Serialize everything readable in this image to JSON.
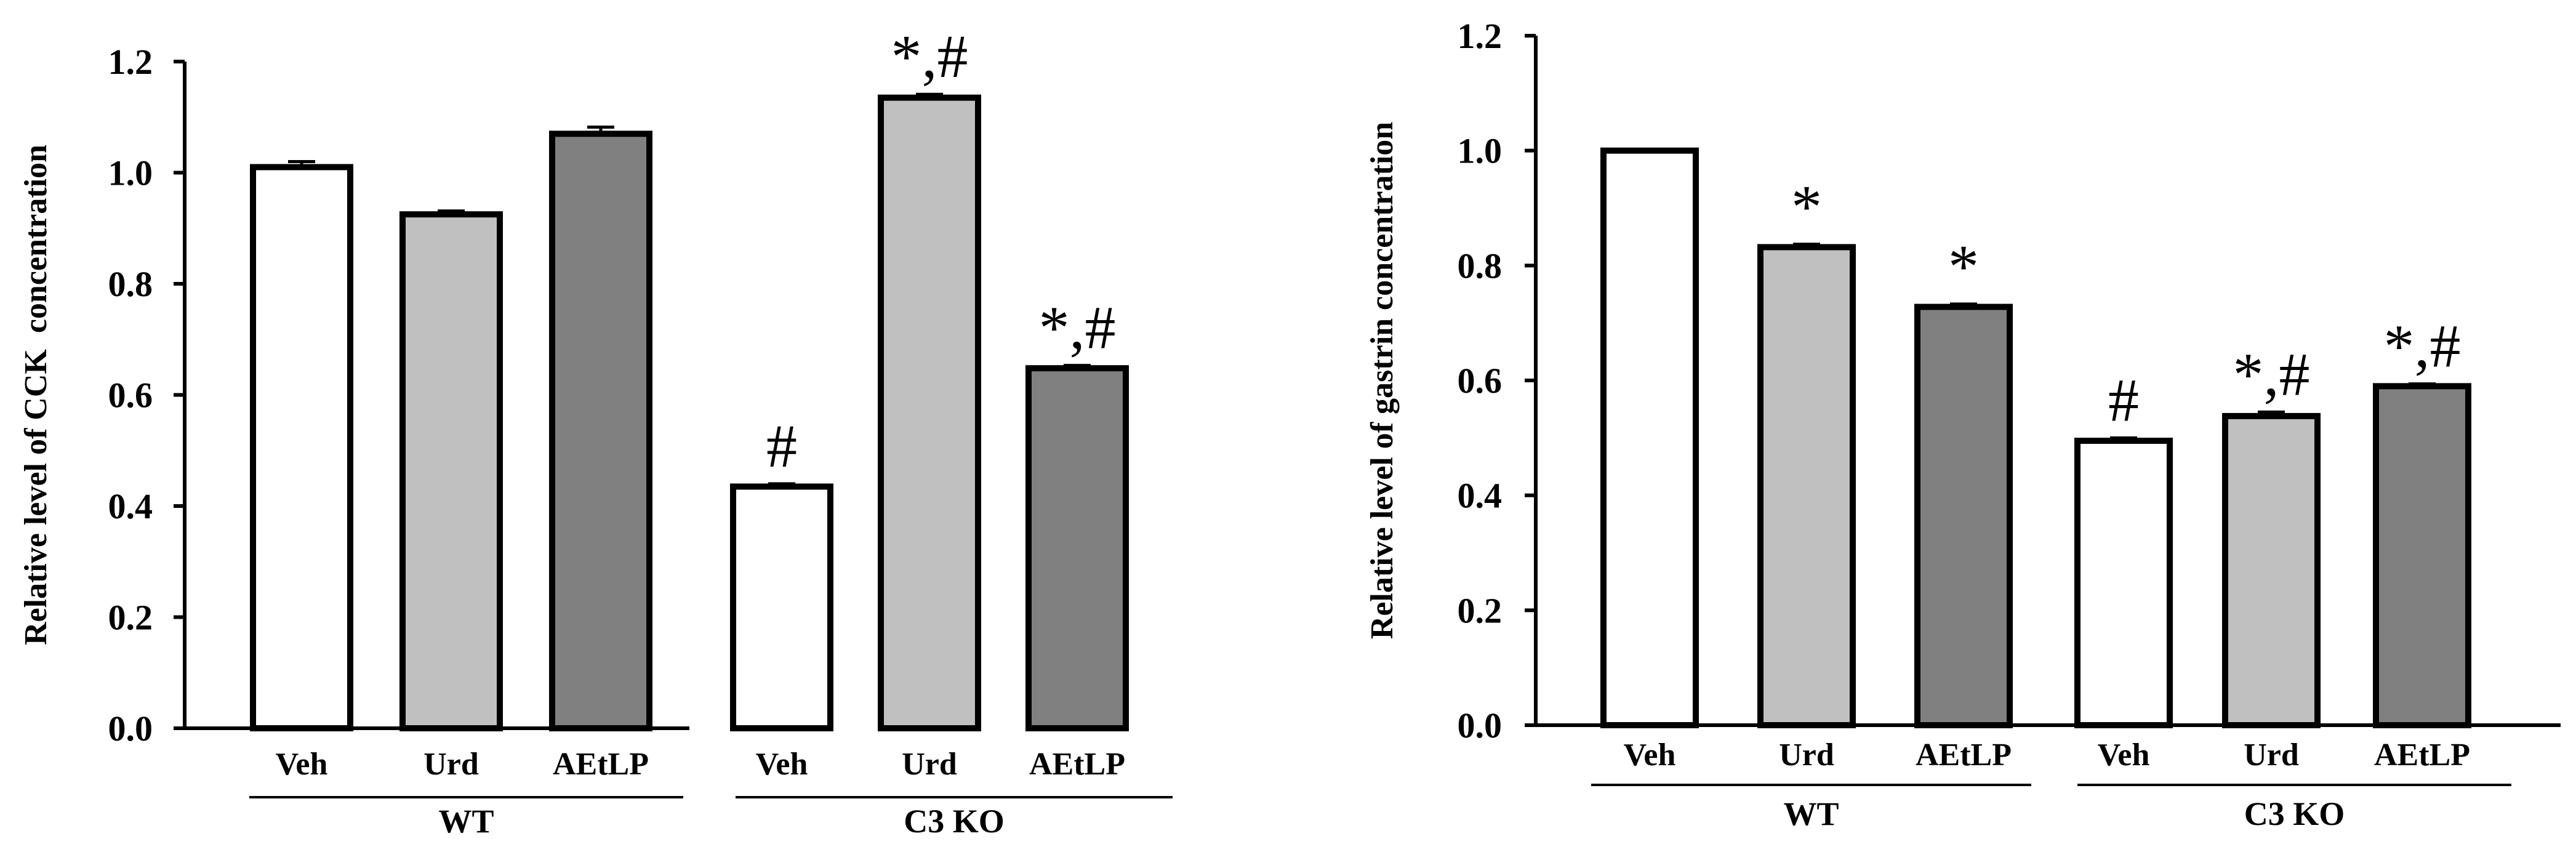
{
  "chart_data": [
    {
      "type": "bar",
      "ylabel": "Relative level of CCK  concentration",
      "ylim": [
        0,
        1.2
      ],
      "yticks": [
        "0.0",
        "0.2",
        "0.4",
        "0.6",
        "0.8",
        "1.0",
        "1.2"
      ],
      "groups": [
        {
          "label": "WT",
          "categories": [
            "Veh",
            "Urd",
            "AEtLP"
          ]
        },
        {
          "label": "C3 KO",
          "categories": [
            "Veh",
            "Urd",
            "AEtLP"
          ]
        }
      ],
      "categories": [
        "Veh",
        "Urd",
        "AEtLP",
        "Veh",
        "Urd",
        "AEtLP"
      ],
      "values": [
        1.01,
        0.925,
        1.07,
        0.435,
        1.135,
        0.648
      ],
      "errors": [
        0.01,
        0.006,
        0.012,
        0.005,
        0.006,
        0.005
      ],
      "annotations": [
        "",
        "",
        "",
        "#",
        "*,#",
        "*,#"
      ],
      "fill_colors": [
        "#ffffff",
        "#c0c0c0",
        "#808080",
        "#ffffff",
        "#c0c0c0",
        "#808080"
      ]
    },
    {
      "type": "bar",
      "ylabel": "Relative level of gastrin concentration",
      "ylim": [
        0,
        1.2
      ],
      "yticks": [
        "0.0",
        "0.2",
        "0.4",
        "0.6",
        "0.8",
        "1.0",
        "1.2"
      ],
      "groups": [
        {
          "label": "WT",
          "categories": [
            "Veh",
            "Urd",
            "AEtLP"
          ]
        },
        {
          "label": "C3 KO",
          "categories": [
            "Veh",
            "Urd",
            "AEtLP"
          ]
        }
      ],
      "categories": [
        "Veh",
        "Urd",
        "AEtLP",
        "Veh",
        "Urd",
        "AEtLP"
      ],
      "values": [
        1.0,
        0.832,
        0.728,
        0.495,
        0.538,
        0.59
      ],
      "errors": [
        0.002,
        0.005,
        0.005,
        0.005,
        0.007,
        0.004
      ],
      "annotations": [
        "",
        "*",
        "*",
        "#",
        "*,#",
        "*,#"
      ],
      "fill_colors": [
        "#ffffff",
        "#c0c0c0",
        "#808080",
        "#ffffff",
        "#c0c0c0",
        "#808080"
      ]
    }
  ]
}
